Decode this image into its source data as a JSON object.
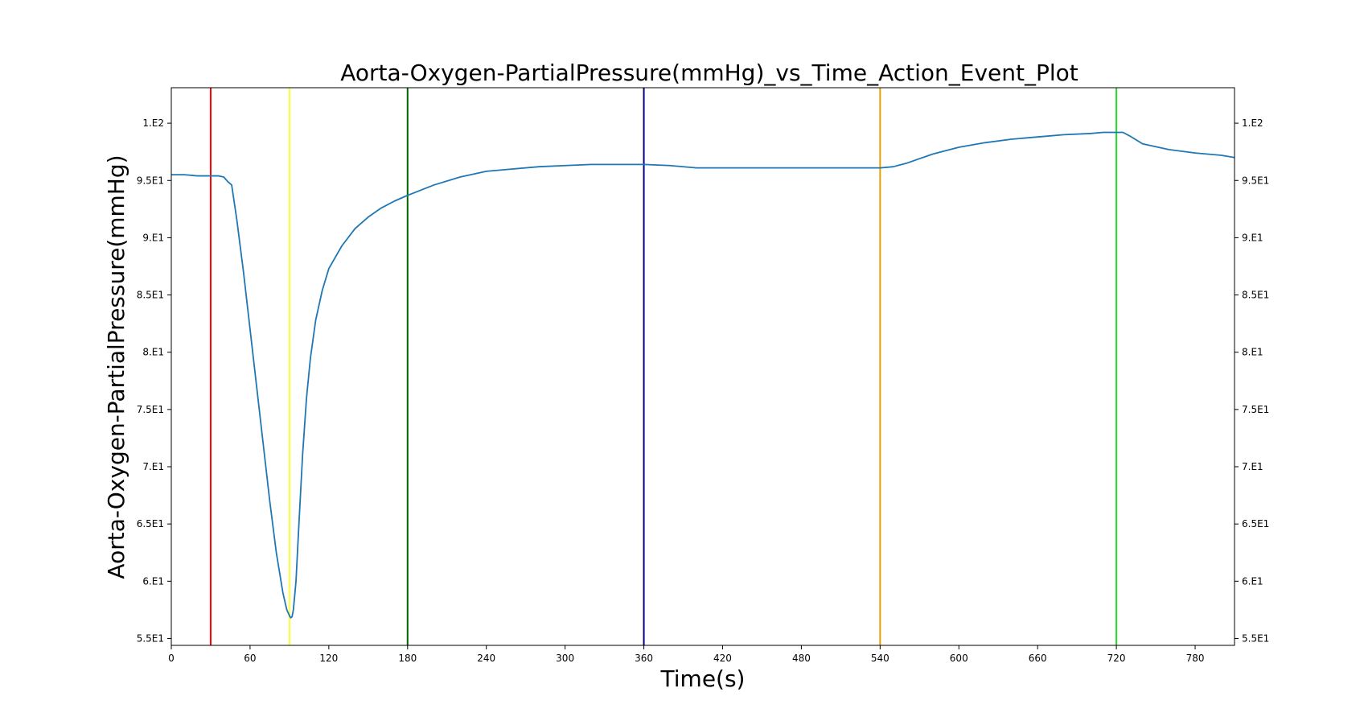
{
  "chart_data": {
    "type": "line",
    "title": "Aorta-Oxygen-PartialPressure(mmHg)_vs_Time_Action_Event_Plot",
    "xlabel": "Time(s)",
    "ylabel": "Aorta-Oxygen-PartialPressure(mmHg)",
    "xlim": [
      0,
      810
    ],
    "ylim": [
      54.4,
      103.1
    ],
    "x_ticks": [
      0,
      60,
      120,
      180,
      240,
      300,
      360,
      420,
      480,
      540,
      600,
      660,
      720,
      780
    ],
    "x_tick_labels": [
      "0",
      "60",
      "120",
      "180",
      "240",
      "300",
      "360",
      "420",
      "480",
      "540",
      "600",
      "660",
      "720",
      "780"
    ],
    "y_ticks": [
      55,
      60,
      65,
      70,
      75,
      80,
      85,
      90,
      95,
      100
    ],
    "y_tick_labels": [
      "5.5E1",
      "6.E1",
      "6.5E1",
      "7.E1",
      "7.5E1",
      "8.E1",
      "8.5E1",
      "9.E1",
      "9.5E1",
      "1.E2"
    ],
    "grid": false,
    "series": [
      {
        "color": "#1f77b4",
        "x": [
          0,
          10,
          20,
          30,
          36,
          40,
          43,
          46,
          50,
          55,
          60,
          65,
          70,
          75,
          80,
          85,
          88,
          90,
          91,
          92,
          93,
          95,
          97,
          100,
          103,
          106,
          110,
          115,
          120,
          130,
          140,
          150,
          160,
          170,
          180,
          200,
          220,
          240,
          260,
          280,
          300,
          320,
          340,
          360,
          380,
          400,
          420,
          440,
          460,
          480,
          500,
          520,
          540,
          550,
          560,
          580,
          600,
          620,
          640,
          660,
          680,
          700,
          710,
          720,
          725,
          730,
          740,
          760,
          780,
          800,
          810
        ],
        "y": [
          95.5,
          95.5,
          95.4,
          95.4,
          95.4,
          95.3,
          94.9,
          94.6,
          91.5,
          87.0,
          82.0,
          77.0,
          72.0,
          67.0,
          62.5,
          59.0,
          57.5,
          57.0,
          56.8,
          56.9,
          57.5,
          60.0,
          64.5,
          71.0,
          76.0,
          79.5,
          82.8,
          85.4,
          87.3,
          89.3,
          90.8,
          91.8,
          92.6,
          93.2,
          93.7,
          94.6,
          95.3,
          95.8,
          96.0,
          96.2,
          96.3,
          96.4,
          96.4,
          96.4,
          96.3,
          96.1,
          96.1,
          96.1,
          96.1,
          96.1,
          96.1,
          96.1,
          96.1,
          96.2,
          96.5,
          97.3,
          97.9,
          98.3,
          98.6,
          98.8,
          99.0,
          99.1,
          99.2,
          99.2,
          99.2,
          98.9,
          98.2,
          97.7,
          97.4,
          97.2,
          97.0
        ]
      }
    ],
    "event_lines": [
      {
        "x": 30,
        "color": "#ff0000"
      },
      {
        "x": 90,
        "color": "#ffff33"
      },
      {
        "x": 180,
        "color": "#006400"
      },
      {
        "x": 360,
        "color": "#000080"
      },
      {
        "x": 540,
        "color": "#e6a100"
      },
      {
        "x": 720,
        "color": "#22dd22"
      }
    ]
  }
}
